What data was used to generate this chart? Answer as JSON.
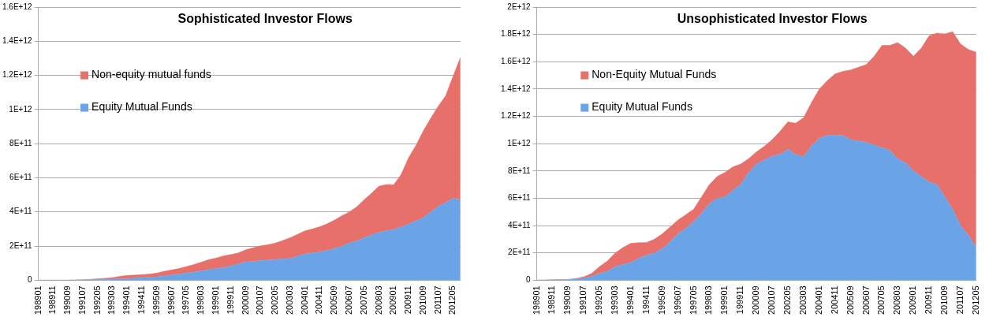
{
  "chart_data": [
    {
      "type": "area",
      "title": "Sophisticated Investor Flows",
      "stacked": true,
      "legend": "left",
      "grid": "y",
      "marker": "none",
      "categories": [
        "198901",
        null,
        "198911",
        null,
        "199009",
        null,
        "199107",
        null,
        "199205",
        null,
        "199303",
        null,
        "199401",
        null,
        "199411",
        null,
        "199509",
        null,
        "199607",
        null,
        "199705",
        null,
        "199803",
        null,
        "199901",
        null,
        "199911",
        null,
        "200009",
        null,
        "200107",
        null,
        "200205",
        null,
        "200303",
        null,
        "200401",
        null,
        "200411",
        null,
        "200509",
        null,
        "200607",
        null,
        "200705",
        null,
        "200803",
        null,
        "200901",
        null,
        "200911",
        null,
        "201009",
        null,
        "201107",
        null,
        "201205",
        null
      ],
      "ylim": [
        0,
        1600000000000.0
      ],
      "yticks": [
        0,
        {
          "value": 200000000000.0,
          "label": "2E+11"
        },
        {
          "value": 400000000000.0,
          "label": "4E+11"
        },
        {
          "value": 600000000000.0,
          "label": "6E+11"
        },
        {
          "value": 800000000000.0,
          "label": "8E+11"
        },
        {
          "value": 1000000000000.0,
          "label": "1E+12"
        },
        {
          "value": 1200000000000.0,
          "label": "1.2E+12"
        },
        {
          "value": 1400000000000.0,
          "label": "1.4E+12"
        },
        {
          "value": 1600000000000.0,
          "label": "1.6E+12"
        }
      ],
      "series": [
        {
          "name": "Equity Mutual Funds",
          "color": "#6aa3e6",
          "values": [
            0,
            0,
            0,
            0,
            0,
            1000000000.0,
            1000000000.0,
            2000000000.0,
            3000000000.0,
            4000000000.0,
            6000000000.0,
            8000000000.0,
            10000000000.0,
            12000000000.0,
            14000000000.0,
            17000000000.0,
            20000000000.0,
            25000000000.0,
            30000000000.0,
            36000000000.0,
            42000000000.0,
            48000000000.0,
            55000000000.0,
            62000000000.0,
            68000000000.0,
            73000000000.0,
            83000000000.0,
            95000000000.0,
            106000000000.0,
            110000000000.0,
            114000000000.0,
            118000000000.0,
            122000000000.0,
            124000000000.0,
            127000000000.0,
            140000000000.0,
            154000000000.0,
            160000000000.0,
            165000000000.0,
            175000000000.0,
            186000000000.0,
            200000000000.0,
            217000000000.0,
            230000000000.0,
            249000000000.0,
            265000000000.0,
            281000000000.0,
            290000000000.0,
            297000000000.0,
            312000000000.0,
            329000000000.0,
            348000000000.0,
            368000000000.0,
            400000000000.0,
            432000000000.0,
            455000000000.0,
            479000000000.0,
            471000000000.0
          ]
        },
        {
          "name": "Non-equity mutual funds",
          "color": "#e8706a",
          "values": [
            0,
            0,
            0,
            0,
            0,
            0,
            1000000000.0,
            3000000000.0,
            5000000000.0,
            7000000000.0,
            9000000000.0,
            14000000000.0,
            18000000000.0,
            18000000000.0,
            18000000000.0,
            19000000000.0,
            22000000000.0,
            27000000000.0,
            30000000000.0,
            32000000000.0,
            38000000000.0,
            44000000000.0,
            50000000000.0,
            58000000000.0,
            62000000000.0,
            69000000000.0,
            67000000000.0,
            65000000000.0,
            72000000000.0,
            80000000000.0,
            87000000000.0,
            90000000000.0,
            95000000000.0,
            108000000000.0,
            122000000000.0,
            128000000000.0,
            135000000000.0,
            140000000000.0,
            148000000000.0,
            155000000000.0,
            166000000000.0,
            178000000000.0,
            183000000000.0,
            200000000000.0,
            222000000000.0,
            245000000000.0,
            270000000000.0,
            270000000000.0,
            262000000000.0,
            308000000000.0,
            388000000000.0,
            442000000000.0,
            508000000000.0,
            550000000000.0,
            587000000000.0,
            625000000000.0,
            715000000000.0,
            834000000000.0
          ]
        }
      ]
    },
    {
      "type": "area",
      "title": "Unsophisticated Investor Flows",
      "stacked": true,
      "legend": "left",
      "grid": "y",
      "marker": "none",
      "categories": [
        "198901",
        null,
        "198911",
        null,
        "199009",
        null,
        "199107",
        null,
        "199205",
        null,
        "199303",
        null,
        "199401",
        null,
        "199411",
        null,
        "199509",
        null,
        "199607",
        null,
        "199705",
        null,
        "199803",
        null,
        "199901",
        null,
        "199911",
        null,
        "200009",
        null,
        "200107",
        null,
        "200205",
        null,
        "200303",
        null,
        "200401",
        null,
        "200411",
        null,
        "200509",
        null,
        "200607",
        null,
        "200705",
        null,
        "200803",
        null,
        "200901",
        null,
        "200911",
        null,
        "201009",
        null,
        "201107",
        null,
        "201205"
      ],
      "ylim": [
        0,
        2000000000000.0
      ],
      "yticks": [
        0,
        {
          "value": 200000000000.0,
          "label": "2E+11"
        },
        {
          "value": 400000000000.0,
          "label": "4E+11"
        },
        {
          "value": 600000000000.0,
          "label": "6E+11"
        },
        {
          "value": 800000000000.0,
          "label": "8E+11"
        },
        {
          "value": 1000000000000.0,
          "label": "1E+12"
        },
        {
          "value": 1200000000000.0,
          "label": "1.2E+12"
        },
        {
          "value": 1400000000000.0,
          "label": "1.4E+12"
        },
        {
          "value": 1600000000000.0,
          "label": "1.6E+12"
        },
        {
          "value": 1800000000000.0,
          "label": "1.8E+12"
        },
        {
          "value": 2000000000000.0,
          "label": "2E+12"
        }
      ],
      "series": [
        {
          "name": "Equity Mutual Funds",
          "color": "#6aa3e6",
          "values": [
            0,
            1000000000.0,
            2000000000.0,
            3000000000.0,
            3000000000.0,
            8000000000.0,
            15000000000.0,
            28000000000.0,
            50000000000.0,
            65000000000.0,
            100000000000.0,
            115000000000.0,
            130000000000.0,
            160000000000.0,
            184000000000.0,
            200000000000.0,
            230000000000.0,
            280000000000.0,
            340000000000.0,
            380000000000.0,
            430000000000.0,
            490000000000.0,
            560000000000.0,
            600000000000.0,
            610000000000.0,
            660000000000.0,
            700000000000.0,
            790000000000.0,
            850000000000.0,
            880000000000.0,
            910000000000.0,
            920000000000.0,
            960000000000.0,
            920000000000.0,
            904000000000.0,
            980000000000.0,
            1040000000000.0,
            1060000000000.0,
            1064000000000.0,
            1060000000000.0,
            1030000000000.0,
            1020000000000.0,
            1010000000000.0,
            990000000000.0,
            970000000000.0,
            950000000000.0,
            890000000000.0,
            860000000000.0,
            800000000000.0,
            760000000000.0,
            720000000000.0,
            700000000000.0,
            610000000000.0,
            520000000000.0,
            400000000000.0,
            330000000000.0,
            240000000000.0
          ]
        },
        {
          "name": "Non-Equity Mutual Funds",
          "color": "#e8706a",
          "values": [
            0,
            0,
            1000000000.0,
            2000000000.0,
            3000000000.0,
            4000000000.0,
            10000000000.0,
            22000000000.0,
            50000000000.0,
            75000000000.0,
            100000000000.0,
            125000000000.0,
            140000000000.0,
            115000000000.0,
            92000000000.0,
            100000000000.0,
            110000000000.0,
            110000000000.0,
            100000000000.0,
            100000000000.0,
            90000000000.0,
            120000000000.0,
            140000000000.0,
            160000000000.0,
            180000000000.0,
            170000000000.0,
            150000000000.0,
            100000000000.0,
            90000000000.0,
            100000000000.0,
            120000000000.0,
            170000000000.0,
            200000000000.0,
            230000000000.0,
            286000000000.0,
            320000000000.0,
            360000000000.0,
            400000000000.0,
            446000000000.0,
            470000000000.0,
            510000000000.0,
            540000000000.0,
            570000000000.0,
            650000000000.0,
            750000000000.0,
            770000000000.0,
            850000000000.0,
            840000000000.0,
            840000000000.0,
            940000000000.0,
            1070000000000.0,
            1110000000000.0,
            1194000000000.0,
            1300000000000.0,
            1330000000000.0,
            1360000000000.0,
            1430000000000.0
          ]
        }
      ]
    }
  ]
}
